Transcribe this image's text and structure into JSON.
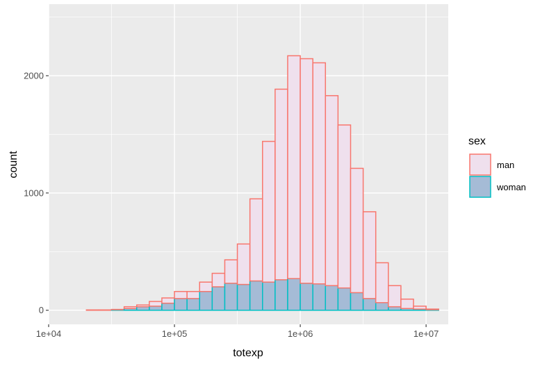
{
  "chart_data": {
    "type": "bar",
    "subtype": "stacked-histogram",
    "title": "",
    "xlabel": "totexp",
    "ylabel": "count",
    "x_scale": "log10",
    "xlim": [
      10000,
      15000000
    ],
    "ylim": [
      -120,
      2610
    ],
    "grid": true,
    "legend_title": "sex",
    "legend_position": "right",
    "x_ticks": [
      {
        "value": 10000,
        "label": "1e+04"
      },
      {
        "value": 100000,
        "label": "1e+05"
      },
      {
        "value": 1000000,
        "label": "1e+06"
      },
      {
        "value": 10000000,
        "label": "1e+07"
      }
    ],
    "y_ticks": [
      {
        "value": 0,
        "label": "0"
      },
      {
        "value": 1000,
        "label": "1000"
      },
      {
        "value": 2000,
        "label": "2000"
      }
    ],
    "bins_log10": [
      [
        4.1,
        4.2
      ],
      [
        4.2,
        4.3
      ],
      [
        4.3,
        4.4
      ],
      [
        4.4,
        4.5
      ],
      [
        4.5,
        4.6
      ],
      [
        4.6,
        4.7
      ],
      [
        4.7,
        4.8
      ],
      [
        4.8,
        4.9
      ],
      [
        4.9,
        5.0
      ],
      [
        5.0,
        5.1
      ],
      [
        5.1,
        5.2
      ],
      [
        5.2,
        5.3
      ],
      [
        5.3,
        5.4
      ],
      [
        5.4,
        5.5
      ],
      [
        5.5,
        5.6
      ],
      [
        5.6,
        5.7
      ],
      [
        5.7,
        5.8
      ],
      [
        5.8,
        5.9
      ],
      [
        5.9,
        6.0
      ],
      [
        6.0,
        6.1
      ],
      [
        6.1,
        6.2
      ],
      [
        6.2,
        6.3
      ],
      [
        6.3,
        6.4
      ],
      [
        6.4,
        6.5
      ],
      [
        6.5,
        6.6
      ],
      [
        6.6,
        6.7
      ],
      [
        6.7,
        6.8
      ],
      [
        6.8,
        6.9
      ],
      [
        6.9,
        7.0
      ],
      [
        7.0,
        7.1
      ]
    ],
    "series": [
      {
        "name": "man",
        "fill": "#efe0ed",
        "stroke": "#f8766d",
        "values": [
          0,
          0,
          3,
          3,
          2,
          15,
          15,
          40,
          45,
          60,
          60,
          80,
          115,
          200,
          345,
          700,
          1200,
          1625,
          1900,
          1915,
          1885,
          1620,
          1390,
          1060,
          740,
          340,
          180,
          80,
          25,
          5
        ]
      },
      {
        "name": "woman",
        "fill": "#a5bbd6",
        "stroke": "#00bfc4",
        "values": [
          0,
          0,
          0,
          0,
          5,
          15,
          30,
          35,
          60,
          100,
          100,
          160,
          200,
          230,
          220,
          250,
          240,
          260,
          270,
          230,
          225,
          210,
          190,
          150,
          100,
          65,
          30,
          15,
          10,
          5
        ]
      }
    ]
  }
}
